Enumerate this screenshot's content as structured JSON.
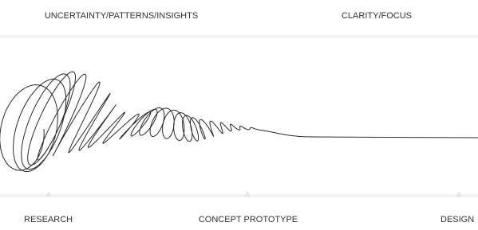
{
  "top_labels": [
    "UNCERTAINTY/PATTERNS/INSIGHTS",
    "CLARITY/FOCUS"
  ],
  "bottom_labels": [
    "RESEARCH",
    "CONCEPT PROTOTYPE",
    "DESIGN"
  ]
}
